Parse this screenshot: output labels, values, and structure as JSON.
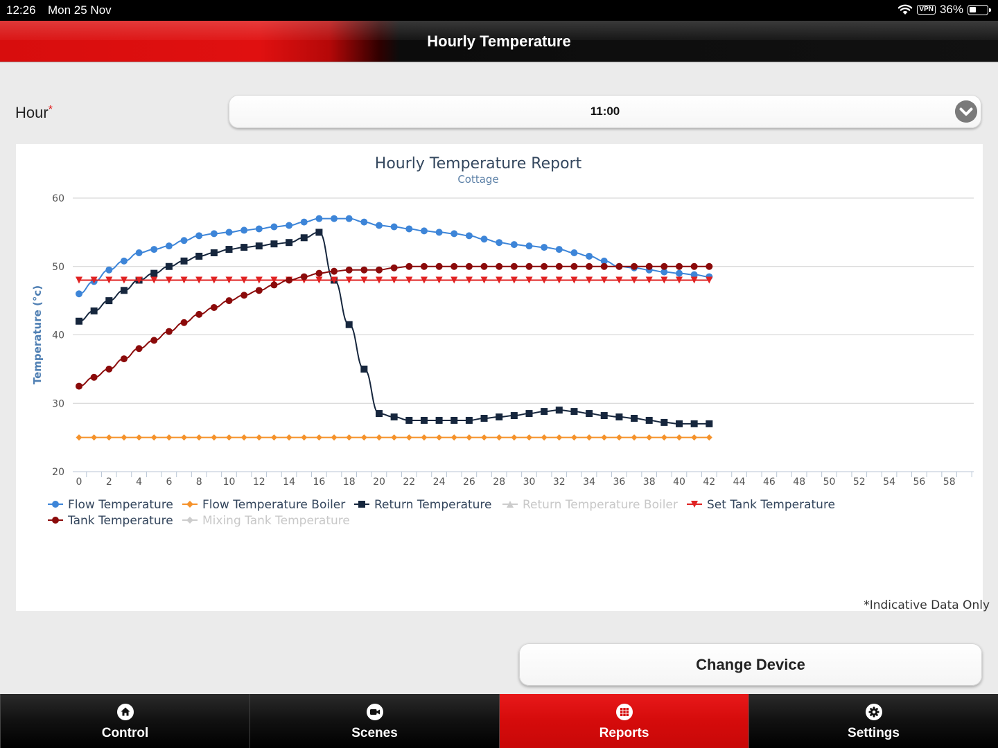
{
  "status_bar": {
    "time": "12:26",
    "date": "Mon 25 Nov",
    "vpn": "VPN",
    "battery": "36%",
    "battery_level": 0.36
  },
  "header": {
    "title": "Hourly Temperature"
  },
  "form": {
    "hour_label": "Hour",
    "required_mark": "*",
    "hour_value": "11:00"
  },
  "chart_data": {
    "type": "line",
    "title": "Hourly Temperature Report",
    "subtitle": "Cottage",
    "ylabel": "Temperature (°c)",
    "xlabel": "",
    "xlim": [
      0,
      59
    ],
    "ylim": [
      20,
      60
    ],
    "y_ticks": [
      20,
      30,
      40,
      50,
      60
    ],
    "x_ticks": [
      0,
      2,
      4,
      6,
      8,
      10,
      12,
      14,
      16,
      18,
      20,
      22,
      24,
      26,
      28,
      30,
      32,
      34,
      36,
      38,
      40,
      42,
      44,
      46,
      48,
      50,
      52,
      54,
      56,
      58
    ],
    "grid": "horizontal",
    "legend_position": "bottom-left",
    "series": [
      {
        "name": "Flow Temperature",
        "color": "#3d85d8",
        "marker": "circle",
        "visible": true,
        "values": [
          46,
          47.8,
          49.5,
          50.8,
          52,
          52.5,
          53,
          53.8,
          54.5,
          54.8,
          55,
          55.3,
          55.5,
          55.8,
          56,
          56.5,
          57,
          57,
          57,
          56.5,
          56,
          55.8,
          55.5,
          55.2,
          55,
          54.8,
          54.5,
          54,
          53.5,
          53.2,
          53,
          52.8,
          52.5,
          52,
          51.5,
          50.8,
          50,
          49.8,
          49.5,
          49.2,
          49,
          48.8,
          48.5
        ]
      },
      {
        "name": "Flow Temperature Boiler",
        "color": "#f5922b",
        "marker": "diamond",
        "visible": true,
        "values": [
          25,
          25,
          25,
          25,
          25,
          25,
          25,
          25,
          25,
          25,
          25,
          25,
          25,
          25,
          25,
          25,
          25,
          25,
          25,
          25,
          25,
          25,
          25,
          25,
          25,
          25,
          25,
          25,
          25,
          25,
          25,
          25,
          25,
          25,
          25,
          25,
          25,
          25,
          25,
          25,
          25,
          25,
          25
        ]
      },
      {
        "name": "Return Temperature",
        "color": "#16263d",
        "marker": "square",
        "visible": true,
        "values": [
          42,
          43.5,
          45,
          46.5,
          48,
          49,
          50,
          50.8,
          51.5,
          52,
          52.5,
          52.8,
          53,
          53.3,
          53.5,
          54.2,
          55,
          48,
          41.5,
          35,
          28.5,
          28,
          27.5,
          27.5,
          27.5,
          27.5,
          27.5,
          27.8,
          28,
          28.2,
          28.5,
          28.8,
          29,
          28.8,
          28.5,
          28.2,
          28,
          27.8,
          27.5,
          27.2,
          27,
          27,
          27
        ]
      },
      {
        "name": "Return Temperature Boiler",
        "color": "#cccccc",
        "marker": "triangle",
        "visible": false,
        "values": []
      },
      {
        "name": "Set Tank Temperature",
        "color": "#e02222",
        "marker": "triangle-down",
        "visible": true,
        "values": [
          48,
          48,
          48,
          48,
          48,
          48,
          48,
          48,
          48,
          48,
          48,
          48,
          48,
          48,
          48,
          48,
          48,
          48,
          48,
          48,
          48,
          48,
          48,
          48,
          48,
          48,
          48,
          48,
          48,
          48,
          48,
          48,
          48,
          48,
          48,
          48,
          48,
          48,
          48,
          48,
          48,
          48,
          48
        ]
      },
      {
        "name": "Tank Temperature",
        "color": "#8b0a0a",
        "marker": "circle",
        "visible": true,
        "values": [
          32.5,
          33.8,
          35,
          36.5,
          38,
          39.2,
          40.5,
          41.8,
          43,
          44,
          45,
          45.8,
          46.5,
          47.3,
          48,
          48.5,
          49,
          49.3,
          49.5,
          49.5,
          49.5,
          49.8,
          50,
          50,
          50,
          50,
          50,
          50,
          50,
          50,
          50,
          50,
          50,
          50,
          50,
          50,
          50,
          50,
          50,
          50,
          50,
          50,
          50
        ]
      },
      {
        "name": "Mixing Tank Temperature",
        "color": "#cccccc",
        "marker": "diamond",
        "visible": false,
        "values": []
      }
    ]
  },
  "footnote": "*Indicative Data Only",
  "actions": {
    "change_device": "Change Device"
  },
  "tabs": [
    {
      "label": "Control",
      "icon": "home-icon",
      "active": false
    },
    {
      "label": "Scenes",
      "icon": "video-camera-icon",
      "active": false
    },
    {
      "label": "Reports",
      "icon": "grid-icon",
      "active": true
    },
    {
      "label": "Settings",
      "icon": "gear-icon",
      "active": false
    }
  ]
}
